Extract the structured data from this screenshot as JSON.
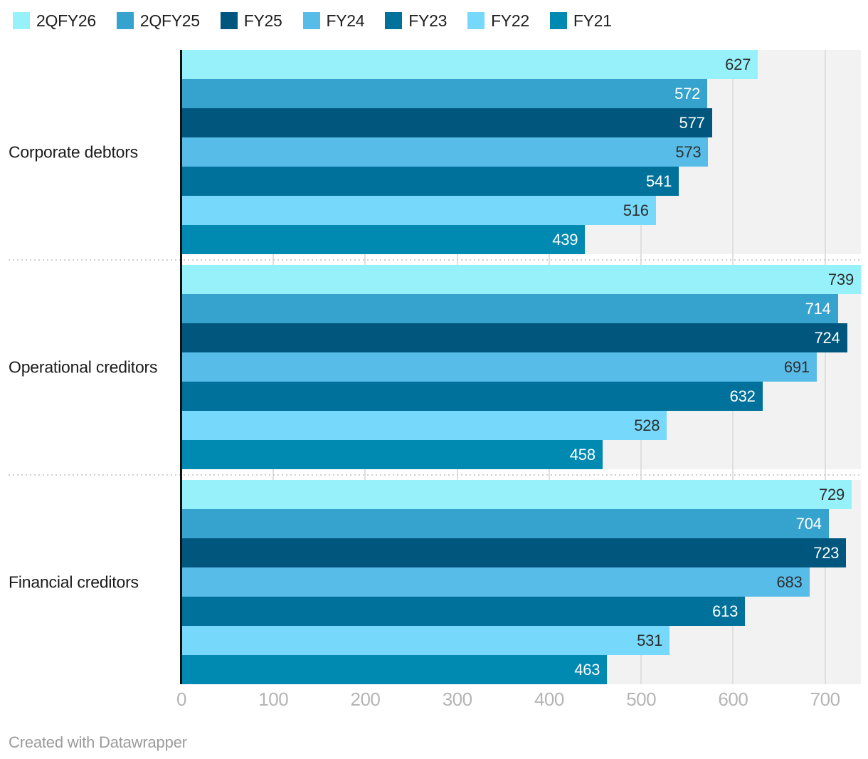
{
  "chart_data": {
    "type": "bar",
    "orientation": "horizontal",
    "categories": [
      "Corporate debtors",
      "Operational creditors",
      "Financial creditors"
    ],
    "series": [
      {
        "name": "2QFY26",
        "color": "#97f1fa",
        "values": [
          627,
          739,
          729
        ]
      },
      {
        "name": "2QFY25",
        "color": "#36a3cf",
        "values": [
          572,
          714,
          704
        ]
      },
      {
        "name": "FY25",
        "color": "#00567d",
        "values": [
          577,
          724,
          723
        ]
      },
      {
        "name": "FY24",
        "color": "#58bce9",
        "values": [
          573,
          691,
          683
        ]
      },
      {
        "name": "FY23",
        "color": "#00719b",
        "values": [
          541,
          632,
          613
        ]
      },
      {
        "name": "FY22",
        "color": "#76d8fb",
        "values": [
          516,
          528,
          531
        ]
      },
      {
        "name": "FY21",
        "color": "#0089b1",
        "values": [
          439,
          458,
          463
        ]
      }
    ],
    "xlim": [
      0,
      739
    ],
    "x_ticks": [
      0,
      100,
      200,
      300,
      400,
      500,
      600,
      700
    ],
    "grid": "vertical",
    "legend_position": "top-left",
    "title": "",
    "xlabel": "",
    "ylabel": ""
  },
  "colors": {
    "plot_band": "#f2f2f2",
    "gridline": "#dfdfdf",
    "axis_line": "#111111",
    "separator_dot": "#cfcfcf",
    "tick_label": "#b5b5b5",
    "category_label": "#1a1a1a",
    "value_label_dark": "#2e2e2e",
    "value_label_light": "#ffffff",
    "credit_text": "#9b9b9b"
  },
  "footer": {
    "credit": "Created with Datawrapper"
  }
}
